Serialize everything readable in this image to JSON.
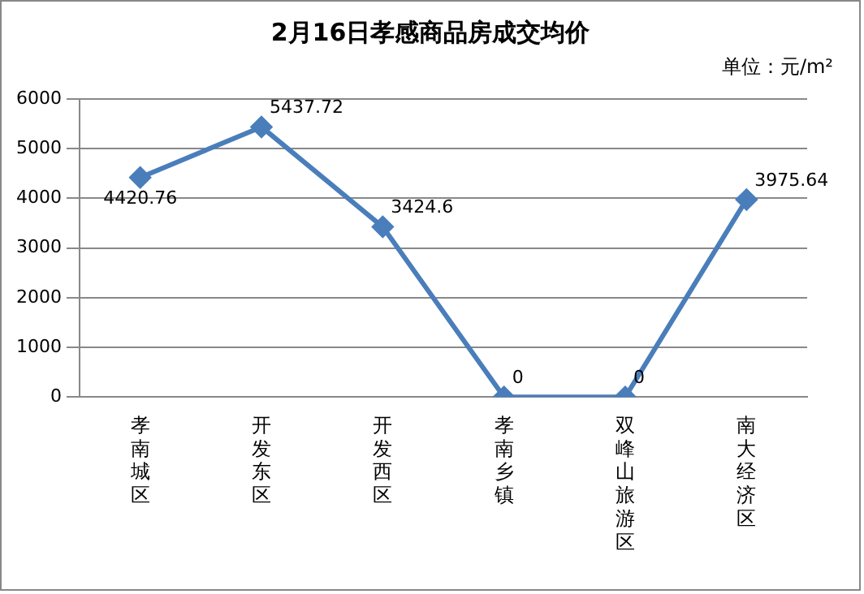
{
  "chart_data": {
    "type": "line",
    "title": "2月16日孝感商品房成交均价",
    "annotations": [
      "单位：元/m²"
    ],
    "categories": [
      "孝南城区",
      "开发东区",
      "开发西区",
      "孝南乡镇",
      "双峰山旅游区",
      "南大经济区"
    ],
    "series": [
      {
        "color": "#4a7ebb",
        "values": [
          4420.76,
          5437.72,
          3424.6,
          0,
          0,
          3975.64
        ]
      }
    ],
    "ylim": [
      0,
      6000
    ],
    "yticks": [
      0,
      1000,
      2000,
      3000,
      4000,
      5000,
      6000
    ],
    "grid": "y",
    "marker": "diamond",
    "line_style": "solid",
    "data_labels": true,
    "legend": false
  }
}
